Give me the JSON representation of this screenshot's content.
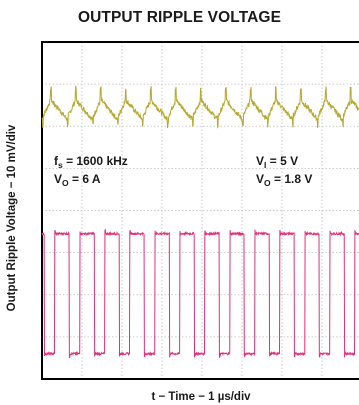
{
  "chart_data": {
    "type": "line",
    "title": "OUTPUT RIPPLE VOLTAGE",
    "xlabel": "t − Time − 1 µs/div",
    "ylabel": "Output Ripple Voltage − 10 mV/div",
    "grid": true,
    "divisions": {
      "x": 8,
      "y": 8
    },
    "annotations": [
      {
        "lines": [
          {
            "base": "f",
            "sub": "s",
            "rest": " = 1600 kHz"
          },
          {
            "base": "V",
            "sub": "O",
            "rest": " = 6 A"
          }
        ],
        "position": "left-middle"
      },
      {
        "lines": [
          {
            "base": "V",
            "sub": "I",
            "rest": " = 5 V"
          },
          {
            "base": "V",
            "sub": "O",
            "rest": " = 1.8 V"
          }
        ],
        "position": "right-middle"
      }
    ],
    "series": [
      {
        "color": "#b8a830",
        "kind": "ripple",
        "period_div": 0.625,
        "baseline_div": 6.4,
        "peak_to_peak_div": 0.45
      },
      {
        "color": "#e0307a",
        "kind": "square",
        "period_div": 0.625,
        "duty": 0.58,
        "high_div": 3.45,
        "low_div": 0.6,
        "phase_div": 0.32
      }
    ]
  }
}
